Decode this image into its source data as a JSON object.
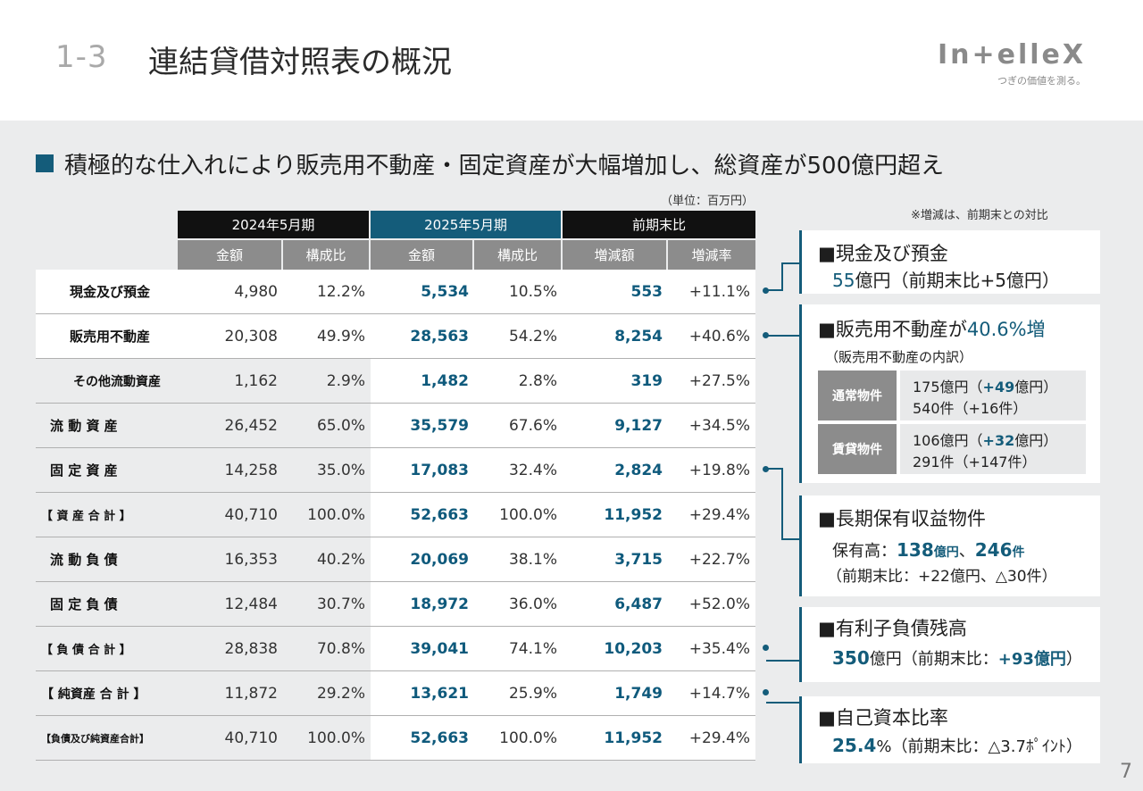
{
  "header": {
    "section_number": "1-3",
    "title": "連結貸借対照表の概況",
    "logo_text": "In+elleX",
    "logo_tagline": "つぎの価値を測る。"
  },
  "headline": "積極的な仕入れにより販売用不動産・固定資産が大幅増加し、総資産が500億円超え",
  "unit_note": "（単位：百万円）",
  "compare_note": "※増減は、前期末との対比",
  "table": {
    "group_headers": [
      "2024年5月期",
      "2025年5月期",
      "前期末比"
    ],
    "sub_headers": [
      "金額",
      "構成比",
      "金額",
      "構成比",
      "増減額",
      "増減率"
    ],
    "rows": [
      {
        "label": "現金及び預金",
        "v": [
          "4,980",
          "12.2%",
          "5,534",
          "10.5%",
          "553",
          "+11.1%"
        ]
      },
      {
        "label": "販売用不動産",
        "v": [
          "20,308",
          "49.9%",
          "28,563",
          "54.2%",
          "8,254",
          "+40.6%"
        ]
      },
      {
        "label": "その他流動資産",
        "v": [
          "1,162",
          "2.9%",
          "1,482",
          "2.8%",
          "319",
          "+27.5%"
        ]
      },
      {
        "label": "流 動 資 産",
        "v": [
          "26,452",
          "65.0%",
          "35,579",
          "67.6%",
          "9,127",
          "+34.5%"
        ]
      },
      {
        "label": "固 定 資 産",
        "v": [
          "14,258",
          "35.0%",
          "17,083",
          "32.4%",
          "2,824",
          "+19.8%"
        ]
      },
      {
        "label": "【 資 産 合 計 】",
        "v": [
          "40,710",
          "100.0%",
          "52,663",
          "100.0%",
          "11,952",
          "+29.4%"
        ]
      },
      {
        "label": "流 動 負 債",
        "v": [
          "16,353",
          "40.2%",
          "20,069",
          "38.1%",
          "3,715",
          "+22.7%"
        ]
      },
      {
        "label": "固 定 負 債",
        "v": [
          "12,484",
          "30.7%",
          "18,972",
          "36.0%",
          "6,487",
          "+52.0%"
        ]
      },
      {
        "label": "【 負 債 合 計 】",
        "v": [
          "28,838",
          "70.8%",
          "39,041",
          "74.1%",
          "10,203",
          "+35.4%"
        ]
      },
      {
        "label": "【 純資産 合 計 】",
        "v": [
          "11,872",
          "29.2%",
          "13,621",
          "25.9%",
          "1,749",
          "+14.7%"
        ]
      },
      {
        "label": "【負債及び純資産合計】",
        "v": [
          "40,710",
          "100.0%",
          "52,663",
          "100.0%",
          "11,952",
          "+29.4%"
        ]
      }
    ]
  },
  "boxes": {
    "cash": {
      "title": "■現金及び預金",
      "value": "55",
      "text": "億円（前期末比+5億円）"
    },
    "inventory": {
      "title_prefix": "■販売用不動産が",
      "title_highlight": "40.6%増",
      "sub": "（販売用不動産の内訳）",
      "items": [
        {
          "tag": "通常物件",
          "line1_a": "175億円（",
          "line1_b": "+49",
          "line1_c": "億円）",
          "line2": "540件（+16件）"
        },
        {
          "tag": "賃貸物件",
          "line1_a": "106億円（",
          "line1_b": "+32",
          "line1_c": "億円）",
          "line2": "291件（+147件）"
        }
      ]
    },
    "longterm": {
      "title": "■長期保有収益物件",
      "line1_a": "保有高：",
      "line1_v1": "138",
      "line1_u1": "億円",
      "line1_sep": "、",
      "line1_v2": "246",
      "line1_u2": "件",
      "line2": "（前期末比：+22億円、△30件）"
    },
    "debt": {
      "title": "■有利子負債残高",
      "value": "350",
      "text_a": "億円（前期末比：",
      "text_b": "+93億円",
      "text_c": "）"
    },
    "equity": {
      "title": "■自己資本比率",
      "value": "25.4",
      "text": "%（前期末比：△3.7ﾎﾟｲﾝﾄ）"
    }
  },
  "page_number": "7",
  "colors": {
    "accent": "#145c7a",
    "header_black": "#111111",
    "header_gray": "#8c8c8c",
    "background": "#ebeced"
  }
}
